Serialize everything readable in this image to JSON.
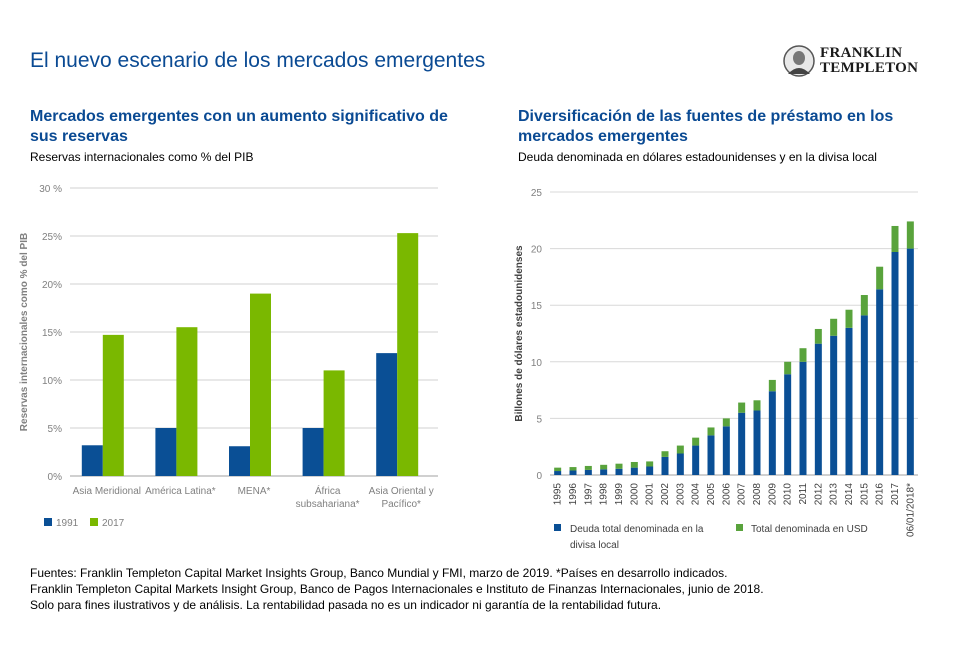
{
  "page": {
    "title": "El nuevo escenario de los mercados emergentes",
    "logo": {
      "line1": "FRANKLIN",
      "line2": "TEMPLETON"
    }
  },
  "left": {
    "title_line1": "Mercados emergentes con un aumento significativo de",
    "title_line2": "sus reservas",
    "subtitle": "Reservas  internacionales  como % del PIB"
  },
  "right": {
    "title_line1": "Diversificación de las fuentes de préstamo en los",
    "title_line2": "mercados emergentes",
    "subtitle": "Deuda  denominada  en  dólares  estadounidenses  y  en la divisa  local"
  },
  "footer": {
    "line1": "Fuentes: Franklin Templeton Capital Market Insights Group, Banco Mundial y FMI, marzo de 2019. *Países en desarrollo indicados.",
    "line2": "Franklin Templeton Capital Markets Insight Group, Banco de Pagos Internacionales e Instituto de Finanzas Internacionales, junio de 2018.",
    "line3": "Solo para fines ilustrativos y  de análisis. La rentabilidad pasada no es un indicador ni garantía de la rentabilidad futura."
  },
  "colors": {
    "blue": "#0a4f95",
    "green": "#7ab800",
    "green2": "#59a33c",
    "title": "#0a4a93"
  },
  "chart_data": [
    {
      "type": "bar",
      "ylabel": "Reservas  internacionales como % del PIB",
      "ylim": [
        0,
        30
      ],
      "yticks": [
        "0%",
        "5%",
        "10%",
        "15%",
        "20%",
        "25%",
        "30 %"
      ],
      "grid": true,
      "legend": "bottom-left",
      "categories": [
        [
          "Asia Meridional"
        ],
        [
          "América Latina*"
        ],
        [
          "MENA*"
        ],
        [
          "África",
          "subsahariana*"
        ],
        [
          "Asia Oriental y",
          "Pacífico*"
        ]
      ],
      "series": [
        {
          "name": "1991",
          "color": "#0a4f95",
          "values": [
            3.2,
            5.0,
            3.1,
            5.0,
            12.8
          ]
        },
        {
          "name": "2017",
          "color": "#7ab800",
          "values": [
            14.7,
            15.5,
            19.0,
            11.0,
            25.3
          ]
        }
      ]
    },
    {
      "type": "bar",
      "stacked": true,
      "ylabel": "Billones de dólares estadounidenses",
      "ylim": [
        0,
        25
      ],
      "yticks": [
        "0",
        "5",
        "10",
        "15",
        "20",
        "25"
      ],
      "grid": true,
      "legend": "bottom",
      "categories": [
        "1995",
        "1996",
        "1997",
        "1998",
        "1999",
        "2000",
        "2001",
        "2002",
        "2003",
        "2004",
        "2005",
        "2006",
        "2007",
        "2008",
        "2009",
        "2010",
        "2011",
        "2012",
        "2013",
        "2014",
        "2015",
        "2016",
        "2017",
        "06/01/2018*"
      ],
      "series": [
        {
          "name": "Deuda  total  denominada  en la  divisa local",
          "color": "#0a4f95",
          "values": [
            0.35,
            0.4,
            0.45,
            0.5,
            0.55,
            0.65,
            0.75,
            1.6,
            1.9,
            2.6,
            3.5,
            4.3,
            5.5,
            5.7,
            7.4,
            8.9,
            10.0,
            11.6,
            12.3,
            13.0,
            14.1,
            16.4,
            19.7,
            20.0
          ]
        },
        {
          "name": "Total  denominada  en  USD",
          "color": "#59a33c",
          "values": [
            0.3,
            0.3,
            0.35,
            0.4,
            0.45,
            0.5,
            0.45,
            0.5,
            0.7,
            0.7,
            0.7,
            0.7,
            0.9,
            0.9,
            1.0,
            1.1,
            1.2,
            1.3,
            1.5,
            1.6,
            1.8,
            2.0,
            2.3,
            2.4
          ]
        }
      ]
    }
  ]
}
